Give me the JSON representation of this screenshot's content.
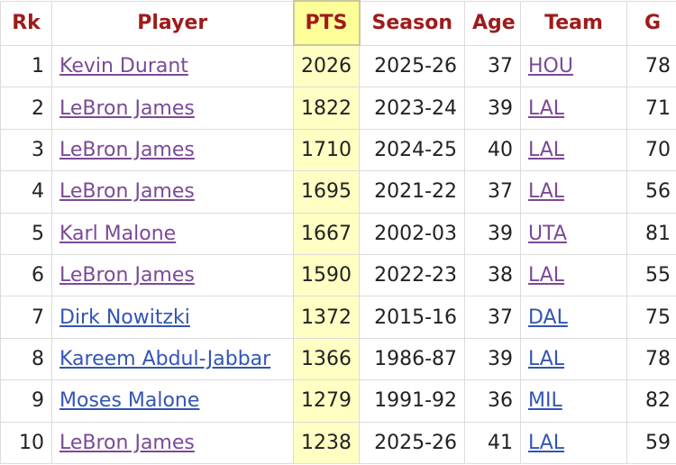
{
  "table": {
    "header": [
      "Rk",
      "Player",
      "PTS",
      "Season",
      "Age",
      "Team",
      "G"
    ],
    "rows": [
      [
        1,
        "Kevin Durant",
        2026,
        "2025-26",
        37,
        "HOU",
        78
      ],
      [
        2,
        "LeBron James",
        1822,
        "2023-24",
        39,
        "LAL",
        71
      ],
      [
        3,
        "LeBron James",
        1710,
        "2024-25",
        40,
        "LAL",
        70
      ],
      [
        4,
        "LeBron James",
        1695,
        "2021-22",
        37,
        "LAL",
        56
      ],
      [
        5,
        "Karl Malone",
        1667,
        "2002-03",
        39,
        "UTA",
        81
      ],
      [
        6,
        "LeBron James",
        1590,
        "2022-23",
        38,
        "LAL",
        55
      ],
      [
        7,
        "Dirk Nowitzki",
        1372,
        "2015-16",
        37,
        "DAL",
        75
      ],
      [
        8,
        "Kareem Abdul-Jabbar",
        1366,
        "1986-87",
        39,
        "LAL",
        78
      ],
      [
        9,
        "Moses Malone",
        1279,
        "1991-92",
        36,
        "MIL",
        82
      ],
      [
        10,
        "LeBron James",
        1238,
        "2025-26",
        41,
        "LAL",
        59
      ]
    ]
  }
}
